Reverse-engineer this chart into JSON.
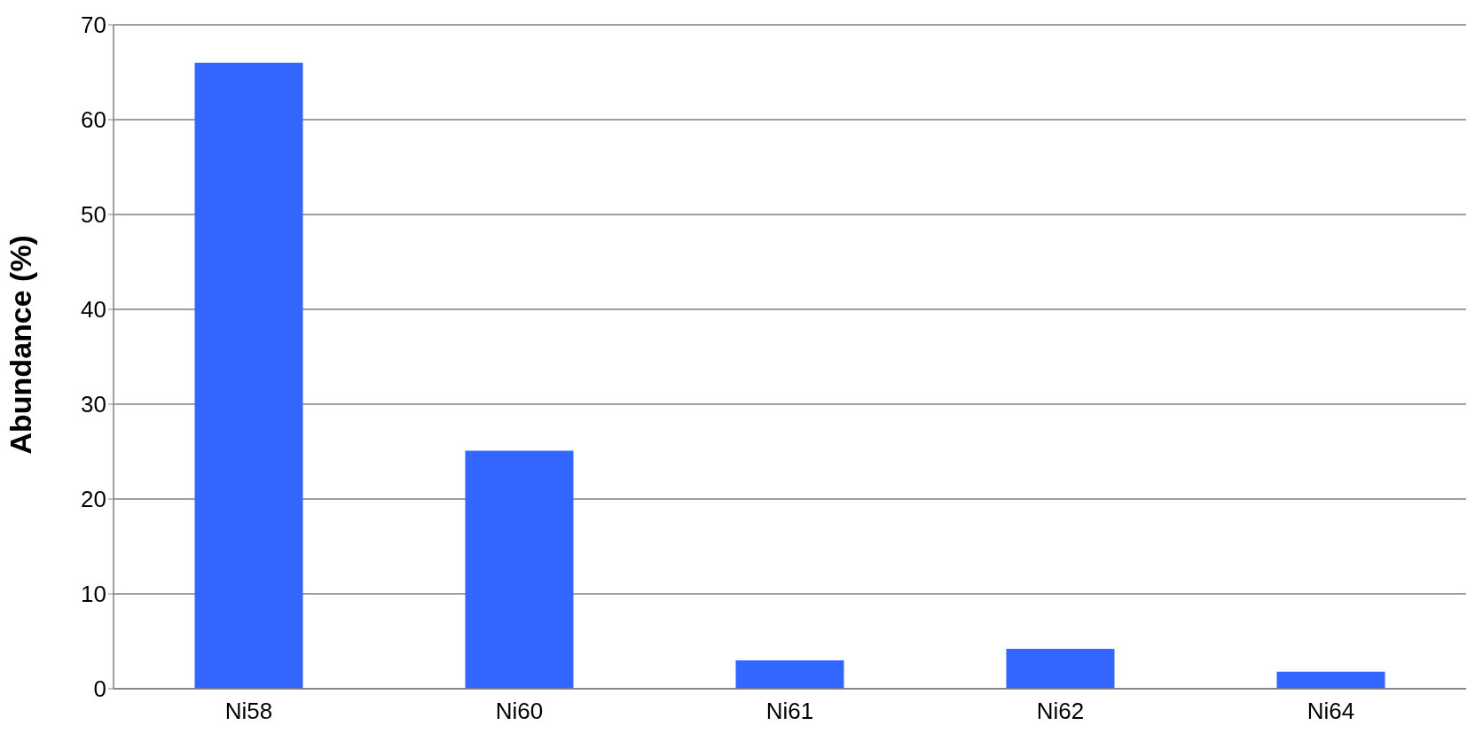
{
  "chart_data": {
    "type": "bar",
    "ylabel": "Abundance (%)",
    "categories": [
      "Ni58",
      "Ni60",
      "Ni61",
      "Ni62",
      "Ni64"
    ],
    "values": [
      66,
      25.1,
      3,
      4.2,
      1.8
    ],
    "color": "#3366ff",
    "ylim": [
      0,
      70
    ],
    "yticks": [
      0,
      10,
      20,
      30,
      40,
      50,
      60,
      70
    ],
    "grid": "y"
  }
}
